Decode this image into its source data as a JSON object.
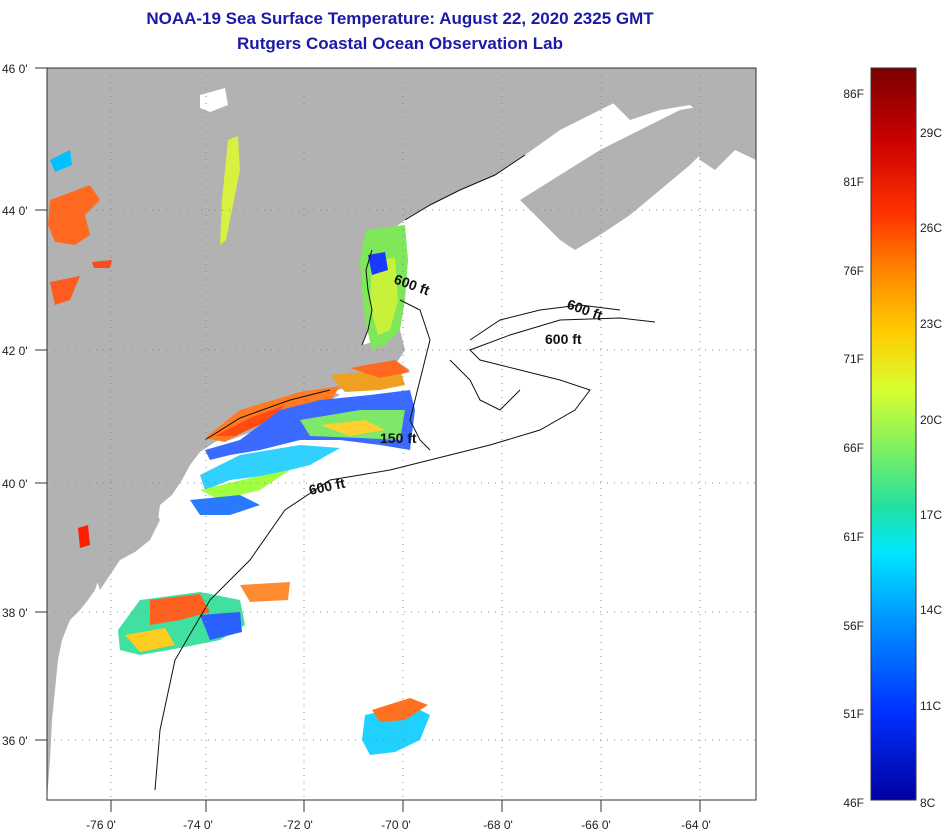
{
  "title": "NOAA-19 Sea Surface Temperature:  August 22, 2020 2325 GMT",
  "subtitle": "Rutgers Coastal Ocean Observation Lab",
  "map": {
    "lon_ticks": [
      "-76 0'",
      "-74 0'",
      "-72 0'",
      "-70 0'",
      "-68 0'",
      "-66 0'",
      "-64 0'"
    ],
    "lat_ticks": [
      "46 0'",
      "44 0'",
      "42 0'",
      "40 0'",
      "38 0'",
      "36 0'"
    ],
    "contour_labels": [
      "600 ft",
      "600 ft",
      "600 ft",
      "150 ft",
      "600 ft"
    ],
    "colors": {
      "land": "#b2b2b2",
      "water": "#ffffff",
      "grid": "#777777"
    }
  },
  "colorbar": {
    "fahrenheit_labels": [
      "86F",
      "81F",
      "76F",
      "71F",
      "66F",
      "61F",
      "56F",
      "51F",
      "46F"
    ],
    "celsius_labels": [
      "29C",
      "26C",
      "23C",
      "20C",
      "17C",
      "14C",
      "11C",
      "8C"
    ],
    "gradient_colors": [
      "#7a0000",
      "#cc0000",
      "#ff3300",
      "#ff8800",
      "#ffcc00",
      "#d8ff30",
      "#7ef060",
      "#22e0a0",
      "#00e8ff",
      "#0090ff",
      "#0030ff",
      "#0000a0"
    ]
  }
}
